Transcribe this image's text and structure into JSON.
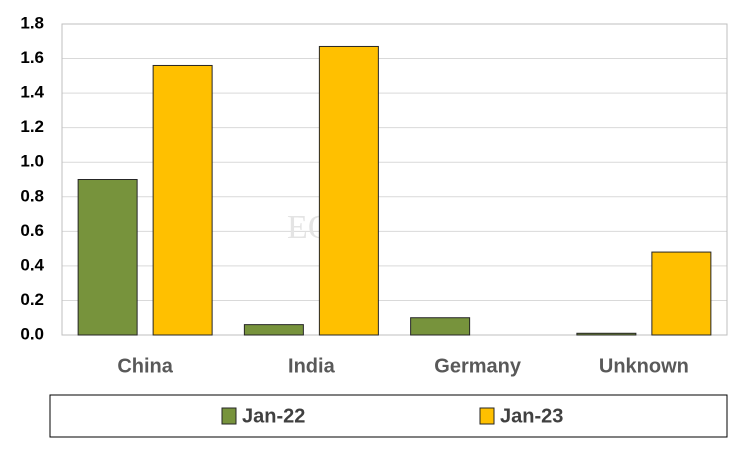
{
  "chart_data": {
    "type": "bar",
    "watermark": "EOA",
    "categories": [
      "China",
      "India",
      "Germany",
      "Unknown"
    ],
    "series": [
      {
        "name": "Jan-22",
        "color": "#77933c",
        "values": [
          0.9,
          0.06,
          0.1,
          0.01
        ]
      },
      {
        "name": "Jan-23",
        "color": "#ffc000",
        "values": [
          1.56,
          1.67,
          0,
          0.48
        ]
      }
    ],
    "ylim": [
      0,
      1.8
    ],
    "yticks": [
      {
        "value": 0,
        "label": "0.0"
      },
      0.2,
      0.4,
      0.6,
      0.8,
      {
        "value": 1,
        "label": "1.0"
      },
      1.2,
      1.4,
      1.6,
      1.8
    ],
    "grid": true,
    "legend": "bottom"
  }
}
